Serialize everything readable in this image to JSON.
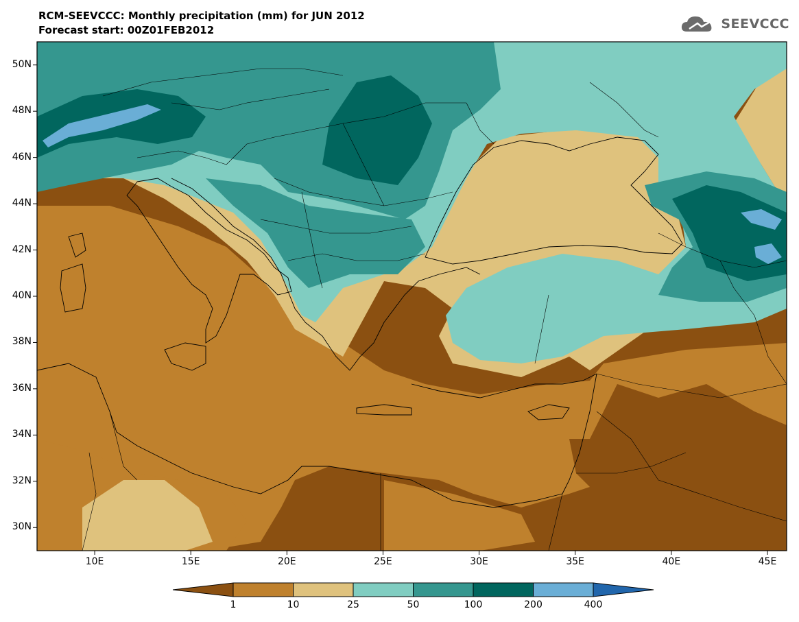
{
  "header": {
    "title": "RCM-SEEVCCC: Monthly precipitation (mm) for JUN 2012",
    "subtitle": "Forecast start: 00Z01FEB2012",
    "logo_text": "SEEVCCC",
    "logo_icon": "cloud-icon"
  },
  "map": {
    "lon_range": [
      7,
      46
    ],
    "lat_range": [
      29,
      51
    ],
    "y_ticks": [
      {
        "lat": 50,
        "label": "50N"
      },
      {
        "lat": 48,
        "label": "48N"
      },
      {
        "lat": 46,
        "label": "46N"
      },
      {
        "lat": 44,
        "label": "44N"
      },
      {
        "lat": 42,
        "label": "42N"
      },
      {
        "lat": 40,
        "label": "40N"
      },
      {
        "lat": 38,
        "label": "38N"
      },
      {
        "lat": 36,
        "label": "36N"
      },
      {
        "lat": 34,
        "label": "34N"
      },
      {
        "lat": 32,
        "label": "32N"
      },
      {
        "lat": 30,
        "label": "30N"
      }
    ],
    "x_ticks": [
      {
        "lon": 10,
        "label": "10E"
      },
      {
        "lon": 15,
        "label": "15E"
      },
      {
        "lon": 20,
        "label": "20E"
      },
      {
        "lon": 25,
        "label": "25E"
      },
      {
        "lon": 30,
        "label": "30E"
      },
      {
        "lon": 35,
        "label": "35E"
      },
      {
        "lon": 40,
        "label": "40E"
      },
      {
        "lon": 45,
        "label": "45E"
      }
    ]
  },
  "colorbar": {
    "colors": [
      "#8b5011",
      "#bf812d",
      "#dfc27d",
      "#80cdc1",
      "#35978f",
      "#01665e",
      "#6aaed6",
      "#2166ac"
    ],
    "labels": [
      "1",
      "10",
      "25",
      "50",
      "100",
      "200",
      "400"
    ],
    "units": "mm"
  }
}
